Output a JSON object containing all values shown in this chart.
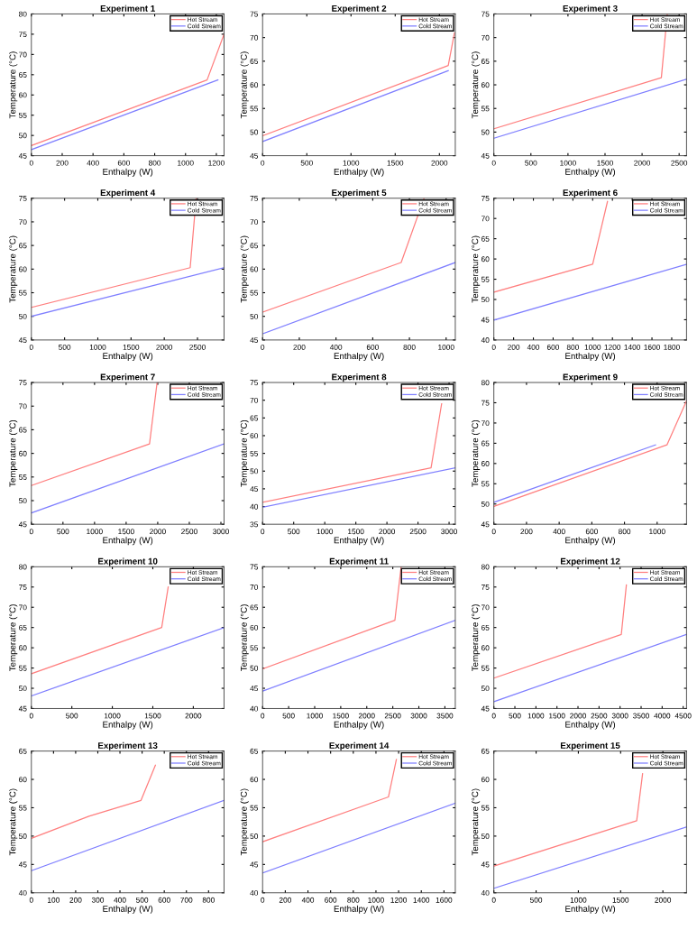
{
  "chart_data": [
    {
      "type": "line",
      "title": "Experiment 1",
      "xlabel": "Enthalpy (W)",
      "ylabel": "Temperature (°C)",
      "xlim": [
        0,
        1250
      ],
      "ylim": [
        45,
        80
      ],
      "xticks": [
        0,
        200,
        400,
        600,
        800,
        1000,
        1200
      ],
      "yticks": [
        45,
        50,
        55,
        60,
        65,
        70,
        75,
        80
      ],
      "legend": "top right",
      "grid": false,
      "series": [
        {
          "name": "Hot Stream",
          "color": "#ff7f7f",
          "x": [
            0,
            1140,
            1250
          ],
          "values": [
            47.5,
            63.7,
            75
          ]
        },
        {
          "name": "Cold Stream",
          "color": "#7f7fff",
          "x": [
            0,
            1210
          ],
          "values": [
            46.5,
            63.7
          ]
        }
      ]
    },
    {
      "type": "line",
      "title": "Experiment 2",
      "xlabel": "Enthalpy (W)",
      "ylabel": "Temperature (°C)",
      "xlim": [
        0,
        2180
      ],
      "ylim": [
        45,
        75
      ],
      "xticks": [
        0,
        500,
        1000,
        1500,
        2000
      ],
      "yticks": [
        45,
        50,
        55,
        60,
        65,
        70,
        75
      ],
      "legend": "top right",
      "grid": false,
      "series": [
        {
          "name": "Hot Stream",
          "color": "#ff7f7f",
          "x": [
            0,
            2100,
            2170
          ],
          "values": [
            49.2,
            64.1,
            71
          ]
        },
        {
          "name": "Cold Stream",
          "color": "#7f7fff",
          "x": [
            0,
            2100
          ],
          "values": [
            48,
            63
          ]
        }
      ]
    },
    {
      "type": "line",
      "title": "Experiment 3",
      "xlabel": "Enthalpy (W)",
      "ylabel": "Temperature (°C)",
      "xlim": [
        0,
        2600
      ],
      "ylim": [
        45,
        75
      ],
      "xticks": [
        0,
        500,
        1000,
        1500,
        2000,
        2500
      ],
      "yticks": [
        45,
        50,
        55,
        60,
        65,
        70,
        75
      ],
      "legend": "top right",
      "grid": false,
      "series": [
        {
          "name": "Hot Stream",
          "color": "#ff7f7f",
          "x": [
            0,
            2260,
            2340
          ],
          "values": [
            50.7,
            61.5,
            75
          ]
        },
        {
          "name": "Cold Stream",
          "color": "#7f7fff",
          "x": [
            0,
            2600
          ],
          "values": [
            48.7,
            61.2
          ]
        }
      ]
    },
    {
      "type": "line",
      "title": "Experiment 4",
      "xlabel": "Enthalpy (W)",
      "ylabel": "Temperature (°C)",
      "xlim": [
        0,
        2900
      ],
      "ylim": [
        45,
        75
      ],
      "xticks": [
        0,
        500,
        1000,
        1500,
        2000,
        2500
      ],
      "yticks": [
        45,
        50,
        55,
        60,
        65,
        70,
        75
      ],
      "legend": "top right",
      "grid": false,
      "series": [
        {
          "name": "Hot Stream",
          "color": "#ff7f7f",
          "x": [
            0,
            2390,
            2480
          ],
          "values": [
            51.9,
            60.3,
            75
          ]
        },
        {
          "name": "Cold Stream",
          "color": "#7f7fff",
          "x": [
            0,
            2900
          ],
          "values": [
            50,
            60.3
          ]
        }
      ]
    },
    {
      "type": "line",
      "title": "Experiment 5",
      "xlabel": "Enthalpy (W)",
      "ylabel": "Temperature (°C)",
      "xlim": [
        0,
        1050
      ],
      "ylim": [
        45,
        75
      ],
      "xticks": [
        0,
        200,
        400,
        600,
        800,
        1000
      ],
      "yticks": [
        45,
        50,
        55,
        60,
        65,
        70,
        75
      ],
      "legend": "top right",
      "grid": false,
      "series": [
        {
          "name": "Hot Stream",
          "color": "#ff7f7f",
          "x": [
            0,
            755,
            880
          ],
          "values": [
            50.9,
            61.4,
            75
          ]
        },
        {
          "name": "Cold Stream",
          "color": "#7f7fff",
          "x": [
            0,
            1050
          ],
          "values": [
            46.3,
            61.4
          ]
        }
      ]
    },
    {
      "type": "line",
      "title": "Experiment 6",
      "xlabel": "Enthalpy (W)",
      "ylabel": "Temperature (°C)",
      "xlim": [
        0,
        1950
      ],
      "ylim": [
        40,
        75
      ],
      "xticks": [
        0,
        200,
        400,
        600,
        800,
        1000,
        1200,
        1400,
        1600,
        1800
      ],
      "yticks": [
        40,
        45,
        50,
        55,
        60,
        65,
        70,
        75
      ],
      "legend": "top right",
      "grid": false,
      "series": [
        {
          "name": "Hot Stream",
          "color": "#ff7f7f",
          "x": [
            0,
            1000,
            1150
          ],
          "values": [
            51.8,
            58.7,
            74.2
          ]
        },
        {
          "name": "Cold Stream",
          "color": "#7f7fff",
          "x": [
            0,
            1950
          ],
          "values": [
            44.9,
            58.7
          ]
        }
      ]
    },
    {
      "type": "line",
      "title": "Experiment 7",
      "xlabel": "Enthalpy (W)",
      "ylabel": "Temperature (°C)",
      "xlim": [
        0,
        3050
      ],
      "ylim": [
        45,
        75
      ],
      "xticks": [
        0,
        500,
        1000,
        1500,
        2000,
        2500,
        3000
      ],
      "yticks": [
        45,
        50,
        55,
        60,
        65,
        70,
        75
      ],
      "legend": "top right",
      "grid": false,
      "series": [
        {
          "name": "Hot Stream",
          "color": "#ff7f7f",
          "x": [
            0,
            1870,
            1990
          ],
          "values": [
            53.2,
            62,
            75
          ]
        },
        {
          "name": "Cold Stream",
          "color": "#7f7fff",
          "x": [
            0,
            3050
          ],
          "values": [
            47.4,
            62
          ]
        }
      ]
    },
    {
      "type": "line",
      "title": "Experiment 8",
      "xlabel": "Enthalpy (W)",
      "ylabel": "Temperature (°C)",
      "xlim": [
        0,
        3100
      ],
      "ylim": [
        35,
        75
      ],
      "xticks": [
        0,
        500,
        1000,
        1500,
        2000,
        2500,
        3000
      ],
      "yticks": [
        35,
        40,
        45,
        50,
        55,
        60,
        65,
        70,
        75
      ],
      "legend": "top right",
      "grid": false,
      "series": [
        {
          "name": "Hot Stream",
          "color": "#ff7f7f",
          "x": [
            0,
            2710,
            2880
          ],
          "values": [
            41.2,
            50.9,
            69
          ]
        },
        {
          "name": "Cold Stream",
          "color": "#7f7fff",
          "x": [
            0,
            3100
          ],
          "values": [
            39.8,
            50.9
          ]
        }
      ]
    },
    {
      "type": "line",
      "title": "Experiment 9",
      "xlabel": "Enthalpy (W)",
      "ylabel": "Temperature (°C)",
      "xlim": [
        0,
        1180
      ],
      "ylim": [
        45,
        80
      ],
      "xticks": [
        0,
        200,
        400,
        600,
        800,
        1000
      ],
      "yticks": [
        45,
        50,
        55,
        60,
        65,
        70,
        75,
        80
      ],
      "legend": "top right",
      "grid": false,
      "series": [
        {
          "name": "Hot Stream",
          "color": "#ff7f7f",
          "x": [
            0,
            1060,
            1180
          ],
          "values": [
            49.4,
            64.6,
            75.5
          ]
        },
        {
          "name": "Cold Stream",
          "color": "#7f7fff",
          "x": [
            0,
            990
          ],
          "values": [
            50.4,
            64.6
          ]
        }
      ]
    },
    {
      "type": "line",
      "title": "Experiment 10",
      "xlabel": "Enthalpy (W)",
      "ylabel": "Temperature (°C)",
      "xlim": [
        0,
        2380
      ],
      "ylim": [
        45,
        80
      ],
      "xticks": [
        0,
        500,
        1000,
        1500,
        2000
      ],
      "yticks": [
        45,
        50,
        55,
        60,
        65,
        70,
        75,
        80
      ],
      "legend": "top right",
      "grid": false,
      "series": [
        {
          "name": "Hot Stream",
          "color": "#ff7f7f",
          "x": [
            0,
            1610,
            1690
          ],
          "values": [
            53.6,
            65,
            75
          ]
        },
        {
          "name": "Cold Stream",
          "color": "#7f7fff",
          "x": [
            0,
            2380
          ],
          "values": [
            48.1,
            65
          ]
        }
      ]
    },
    {
      "type": "line",
      "title": "Experiment 11",
      "xlabel": "Enthalpy (W)",
      "ylabel": "Temperature (°C)",
      "xlim": [
        0,
        3700
      ],
      "ylim": [
        40,
        75
      ],
      "xticks": [
        0,
        500,
        1000,
        1500,
        2000,
        2500,
        3000,
        3500
      ],
      "yticks": [
        40,
        45,
        50,
        55,
        60,
        65,
        70,
        75
      ],
      "legend": "top right",
      "grid": false,
      "series": [
        {
          "name": "Hot Stream",
          "color": "#ff7f7f",
          "x": [
            0,
            2540,
            2660
          ],
          "values": [
            49.8,
            61.8,
            75
          ]
        },
        {
          "name": "Cold Stream",
          "color": "#7f7fff",
          "x": [
            0,
            3700
          ],
          "values": [
            44.3,
            61.8
          ]
        }
      ]
    },
    {
      "type": "line",
      "title": "Experiment 12",
      "xlabel": "Enthalpy (W)",
      "ylabel": "Temperature (°C)",
      "xlim": [
        0,
        4580
      ],
      "ylim": [
        45,
        80
      ],
      "xticks": [
        0,
        500,
        1000,
        1500,
        2000,
        2500,
        3000,
        3500,
        4000,
        4500
      ],
      "yticks": [
        45,
        50,
        55,
        60,
        65,
        70,
        75,
        80
      ],
      "legend": "top right",
      "grid": false,
      "series": [
        {
          "name": "Hot Stream",
          "color": "#ff7f7f",
          "x": [
            0,
            3030,
            3150
          ],
          "values": [
            52.5,
            63.3,
            75.5
          ]
        },
        {
          "name": "Cold Stream",
          "color": "#7f7fff",
          "x": [
            0,
            4580
          ],
          "values": [
            46.7,
            63.3
          ]
        }
      ]
    },
    {
      "type": "line",
      "title": "Experiment 13",
      "xlabel": "Enthalpy (W)",
      "ylabel": "Temperature (°C)",
      "xlim": [
        0,
        870
      ],
      "ylim": [
        40,
        65
      ],
      "xticks": [
        0,
        100,
        200,
        300,
        400,
        500,
        600,
        700,
        800
      ],
      "yticks": [
        40,
        45,
        50,
        55,
        60,
        65
      ],
      "legend": "top right",
      "grid": false,
      "series": [
        {
          "name": "Hot Stream",
          "color": "#ff7f7f",
          "x": [
            0,
            260,
            495,
            560
          ],
          "values": [
            49.6,
            53.5,
            56.3,
            62.5
          ]
        },
        {
          "name": "Cold Stream",
          "color": "#7f7fff",
          "x": [
            0,
            870
          ],
          "values": [
            43.9,
            56.3
          ]
        }
      ]
    },
    {
      "type": "line",
      "title": "Experiment 14",
      "xlabel": "Enthalpy (W)",
      "ylabel": "Temperature (°C)",
      "xlim": [
        0,
        1700
      ],
      "ylim": [
        40,
        65
      ],
      "xticks": [
        0,
        200,
        400,
        600,
        800,
        1000,
        1200,
        1400,
        1600
      ],
      "yticks": [
        40,
        45,
        50,
        55,
        60,
        65
      ],
      "legend": "top right",
      "grid": false,
      "series": [
        {
          "name": "Hot Stream",
          "color": "#ff7f7f",
          "x": [
            0,
            1110,
            1180
          ],
          "values": [
            49,
            56.9,
            63.5
          ]
        },
        {
          "name": "Cold Stream",
          "color": "#7f7fff",
          "x": [
            0,
            1700
          ],
          "values": [
            43.5,
            55.8
          ]
        }
      ]
    },
    {
      "type": "line",
      "title": "Experiment 15",
      "xlabel": "Enthalpy (W)",
      "ylabel": "Temperature (°C)",
      "xlim": [
        0,
        2280
      ],
      "ylim": [
        40,
        65
      ],
      "xticks": [
        0,
        500,
        1000,
        1500,
        2000
      ],
      "yticks": [
        40,
        45,
        50,
        55,
        60,
        65
      ],
      "legend": "top right",
      "grid": false,
      "series": [
        {
          "name": "Hot Stream",
          "color": "#ff7f7f",
          "x": [
            0,
            1690,
            1760
          ],
          "values": [
            44.7,
            52.7,
            61
          ]
        },
        {
          "name": "Cold Stream",
          "color": "#7f7fff",
          "x": [
            0,
            2280
          ],
          "values": [
            40.8,
            51.6
          ]
        }
      ]
    }
  ]
}
